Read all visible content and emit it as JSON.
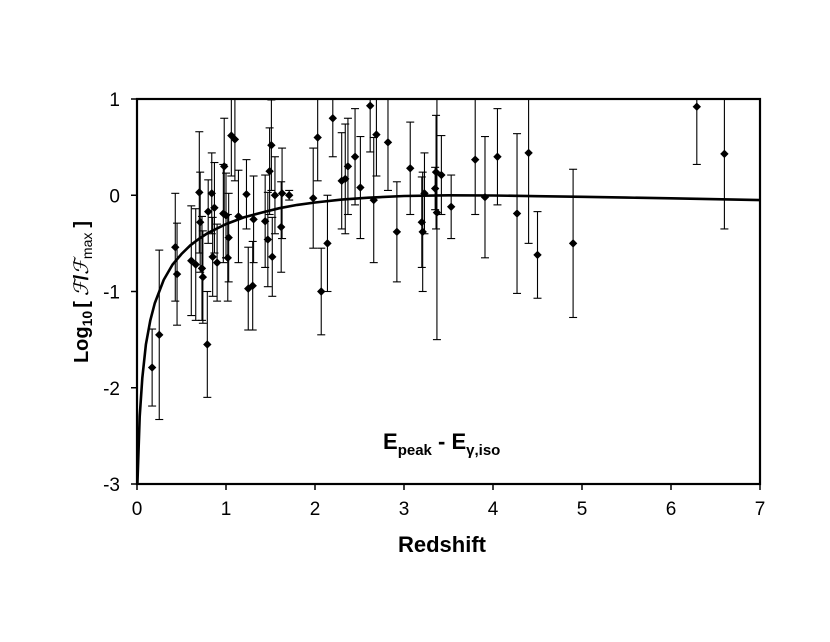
{
  "chart_data": {
    "type": "scatter",
    "title": "",
    "xlabel": "Redshift",
    "ylabel": {
      "prefix": "Log",
      "sub": "10",
      "bracket_open": "[",
      "F1": "ℱ",
      "slash": "/",
      "F2": "ℱ",
      "F2_sub": "max",
      "bracket_close": "]"
    },
    "annotation": {
      "E1": "E",
      "E1_sub": "peak",
      "dash": " - ",
      "E2": "E",
      "E2_sub": "γ,iso"
    },
    "xlim": [
      0,
      7
    ],
    "ylim": [
      -3,
      1
    ],
    "xticks": [
      "0",
      "1",
      "2",
      "3",
      "4",
      "5",
      "6",
      "7"
    ],
    "yticks": [
      "-3",
      "-2",
      "-1",
      "0",
      "1"
    ],
    "grid": false,
    "legend": "none",
    "marker": "diamond",
    "points": [
      {
        "x": 0.17,
        "y": -1.79,
        "lo": -2.19,
        "hi": -1.39
      },
      {
        "x": 0.25,
        "y": -1.45,
        "lo": -2.33,
        "hi": -0.57
      },
      {
        "x": 0.43,
        "y": -0.54,
        "lo": -1.1,
        "hi": 0.02
      },
      {
        "x": 0.45,
        "y": -0.82,
        "lo": -1.35,
        "hi": -0.29
      },
      {
        "x": 0.61,
        "y": -0.68,
        "lo": -1.25,
        "hi": -0.11
      },
      {
        "x": 0.66,
        "y": -0.72,
        "lo": -1.3,
        "hi": -0.14
      },
      {
        "x": 0.7,
        "y": 0.03,
        "lo": -0.6,
        "hi": 0.66
      },
      {
        "x": 0.71,
        "y": -0.28,
        "lo": -0.8,
        "hi": 0.24
      },
      {
        "x": 0.73,
        "y": -0.76,
        "lo": -1.3,
        "hi": -0.22
      },
      {
        "x": 0.74,
        "y": -0.85,
        "lo": -1.33,
        "hi": -0.37
      },
      {
        "x": 0.79,
        "y": -1.55,
        "lo": -2.1,
        "hi": -1.0
      },
      {
        "x": 0.8,
        "y": -0.17,
        "lo": -0.5,
        "hi": 0.16
      },
      {
        "x": 0.84,
        "y": 0.02,
        "lo": -0.4,
        "hi": 0.44
      },
      {
        "x": 0.85,
        "y": -0.64,
        "lo": -1.05,
        "hi": -0.23
      },
      {
        "x": 0.87,
        "y": -0.13,
        "lo": -0.6,
        "hi": 0.34
      },
      {
        "x": 0.9,
        "y": -0.7,
        "lo": -1.1,
        "hi": -0.3
      },
      {
        "x": 0.97,
        "y": -0.19,
        "lo": -0.7,
        "hi": 0.32
      },
      {
        "x": 0.98,
        "y": 0.3,
        "lo": -0.2,
        "hi": 0.8
      },
      {
        "x": 1.0,
        "y": -0.21,
        "lo": -0.65,
        "hi": 0.23
      },
      {
        "x": 1.02,
        "y": -0.65,
        "lo": -1.1,
        "hi": -0.2
      },
      {
        "x": 1.03,
        "y": -0.44,
        "lo": -0.9,
        "hi": 0.02
      },
      {
        "x": 1.06,
        "y": 0.62,
        "lo": 0.2,
        "hi": 1.0
      },
      {
        "x": 1.1,
        "y": 0.58,
        "lo": 0.15,
        "hi": 1.0
      },
      {
        "x": 1.14,
        "y": -0.22,
        "lo": -0.7,
        "hi": 0.26
      },
      {
        "x": 1.23,
        "y": 0.01,
        "lo": -0.35,
        "hi": 0.37
      },
      {
        "x": 1.25,
        "y": -0.97,
        "lo": -1.4,
        "hi": -0.54
      },
      {
        "x": 1.3,
        "y": -0.94,
        "lo": -1.4,
        "hi": -0.48
      },
      {
        "x": 1.31,
        "y": -0.25,
        "lo": -0.7,
        "hi": 0.2
      },
      {
        "x": 1.44,
        "y": -0.27,
        "lo": -0.75,
        "hi": 0.21
      },
      {
        "x": 1.47,
        "y": -0.46,
        "lo": -0.95,
        "hi": 0.03
      },
      {
        "x": 1.49,
        "y": 0.25,
        "lo": -0.2,
        "hi": 0.7
      },
      {
        "x": 1.51,
        "y": 0.52,
        "lo": 0.05,
        "hi": 0.99
      },
      {
        "x": 1.52,
        "y": -0.64,
        "lo": -1.05,
        "hi": -0.23
      },
      {
        "x": 1.55,
        "y": 0.0,
        "lo": -0.4,
        "hi": 0.4
      },
      {
        "x": 1.62,
        "y": -0.33,
        "lo": -0.8,
        "hi": 0.14
      },
      {
        "x": 1.63,
        "y": 0.02,
        "lo": -0.45,
        "hi": 0.49
      },
      {
        "x": 1.71,
        "y": 0.0,
        "lo": -0.05,
        "hi": 0.05
      },
      {
        "x": 1.98,
        "y": -0.03,
        "lo": -0.55,
        "hi": 0.49
      },
      {
        "x": 2.03,
        "y": 0.6,
        "lo": 0.15,
        "hi": 1.0
      },
      {
        "x": 2.07,
        "y": -1.0,
        "lo": -1.45,
        "hi": -0.55
      },
      {
        "x": 2.14,
        "y": -0.5,
        "lo": -1.0,
        "hi": 0.0
      },
      {
        "x": 2.2,
        "y": 0.8,
        "lo": 0.4,
        "hi": 1.0
      },
      {
        "x": 2.3,
        "y": 0.15,
        "lo": -0.35,
        "hi": 0.65
      },
      {
        "x": 2.34,
        "y": 0.17,
        "lo": -0.4,
        "hi": 0.74
      },
      {
        "x": 2.37,
        "y": 0.3,
        "lo": -0.2,
        "hi": 0.8
      },
      {
        "x": 2.45,
        "y": 0.4,
        "lo": -0.1,
        "hi": 0.9
      },
      {
        "x": 2.51,
        "y": 0.08,
        "lo": -0.45,
        "hi": 0.61
      },
      {
        "x": 2.62,
        "y": 0.93,
        "lo": 0.45,
        "hi": 1.0
      },
      {
        "x": 2.66,
        "y": -0.05,
        "lo": -0.7,
        "hi": 0.6
      },
      {
        "x": 2.69,
        "y": 0.63,
        "lo": 0.2,
        "hi": 1.0
      },
      {
        "x": 2.82,
        "y": 0.55,
        "lo": 0.05,
        "hi": 1.0
      },
      {
        "x": 2.92,
        "y": -0.38,
        "lo": -0.9,
        "hi": 0.14
      },
      {
        "x": 3.07,
        "y": 0.28,
        "lo": -0.2,
        "hi": 0.76
      },
      {
        "x": 3.2,
        "y": -0.28,
        "lo": -0.75,
        "hi": 0.19
      },
      {
        "x": 3.21,
        "y": -0.38,
        "lo": -1.0,
        "hi": 0.24
      },
      {
        "x": 3.23,
        "y": 0.02,
        "lo": -0.4,
        "hi": 0.44
      },
      {
        "x": 3.35,
        "y": 0.07,
        "lo": -0.15,
        "hi": 0.29
      },
      {
        "x": 3.36,
        "y": 0.24,
        "lo": -0.35,
        "hi": 0.83
      },
      {
        "x": 3.37,
        "y": -0.18,
        "lo": -1.5,
        "hi": 1.0
      },
      {
        "x": 3.42,
        "y": 0.21,
        "lo": -0.2,
        "hi": 0.62
      },
      {
        "x": 3.53,
        "y": -0.12,
        "lo": -0.45,
        "hi": 0.21
      },
      {
        "x": 3.8,
        "y": 0.37,
        "lo": -0.2,
        "hi": 1.0
      },
      {
        "x": 3.91,
        "y": -0.02,
        "lo": -0.65,
        "hi": 0.61
      },
      {
        "x": 4.05,
        "y": 0.4,
        "lo": -0.1,
        "hi": 0.9
      },
      {
        "x": 4.27,
        "y": -0.19,
        "lo": -1.02,
        "hi": 0.64
      },
      {
        "x": 4.4,
        "y": 0.44,
        "lo": -0.5,
        "hi": 1.0
      },
      {
        "x": 4.5,
        "y": -0.62,
        "lo": -1.07,
        "hi": -0.17
      },
      {
        "x": 4.9,
        "y": -0.5,
        "lo": -1.27,
        "hi": 0.27
      },
      {
        "x": 6.29,
        "y": 0.92,
        "lo": 0.32,
        "hi": 1.0
      },
      {
        "x": 6.6,
        "y": 0.43,
        "lo": -0.35,
        "hi": 1.0
      }
    ],
    "curve": {
      "description_shape": "rises steeply from -3 at z=0, peaks near 0 around z=3.5-4, then slowly declines",
      "samples": [
        [
          0.005,
          -3.0
        ],
        [
          0.03,
          -2.3
        ],
        [
          0.06,
          -1.9
        ],
        [
          0.1,
          -1.55
        ],
        [
          0.15,
          -1.3
        ],
        [
          0.2,
          -1.12
        ],
        [
          0.3,
          -0.88
        ],
        [
          0.4,
          -0.72
        ],
        [
          0.5,
          -0.61
        ],
        [
          0.6,
          -0.52
        ],
        [
          0.7,
          -0.45
        ],
        [
          0.8,
          -0.39
        ],
        [
          1.0,
          -0.3
        ],
        [
          1.2,
          -0.23
        ],
        [
          1.4,
          -0.18
        ],
        [
          1.6,
          -0.135
        ],
        [
          1.8,
          -0.1
        ],
        [
          2.0,
          -0.075
        ],
        [
          2.3,
          -0.045
        ],
        [
          2.6,
          -0.025
        ],
        [
          3.0,
          -0.008
        ],
        [
          3.5,
          0.0
        ],
        [
          4.0,
          -0.003
        ],
        [
          4.5,
          -0.01
        ],
        [
          5.0,
          -0.016
        ],
        [
          5.5,
          -0.024
        ],
        [
          6.0,
          -0.032
        ],
        [
          6.5,
          -0.041
        ],
        [
          7.0,
          -0.05
        ]
      ]
    }
  }
}
